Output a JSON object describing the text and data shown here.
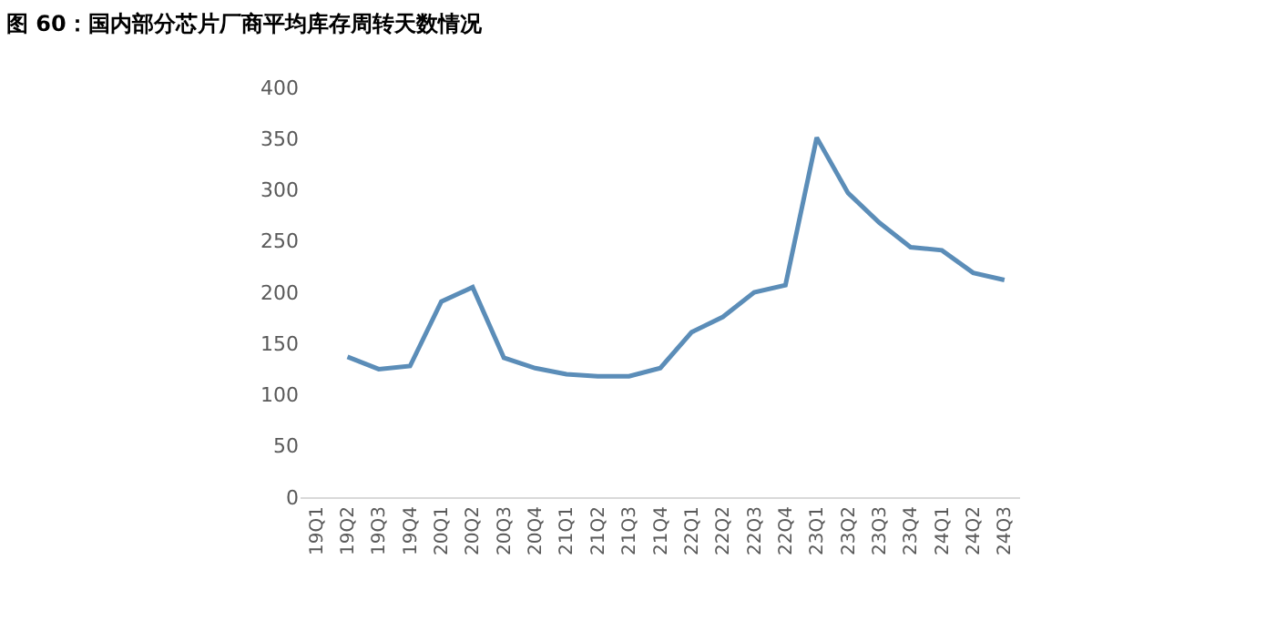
{
  "chart_data": {
    "type": "line",
    "title": "图 60：国内部分芯片厂商平均库存周转天数情况",
    "categories": [
      "19Q1",
      "19Q2",
      "19Q3",
      "19Q4",
      "20Q1",
      "20Q2",
      "20Q3",
      "20Q4",
      "21Q1",
      "21Q2",
      "21Q3",
      "21Q4",
      "22Q1",
      "22Q2",
      "22Q3",
      "22Q4",
      "23Q1",
      "23Q2",
      "23Q3",
      "23Q4",
      "24Q1",
      "24Q2",
      "24Q3"
    ],
    "series": [
      {
        "color": "#5b8db8",
        "values": [
          null,
          137,
          125,
          128,
          191,
          205,
          136,
          126,
          120,
          118,
          118,
          126,
          161,
          176,
          200,
          207,
          351,
          297,
          268,
          244,
          241,
          219,
          212
        ]
      }
    ],
    "ylim": [
      0,
      400
    ],
    "yticks": [
      0,
      50,
      100,
      150,
      200,
      250,
      300,
      350,
      400
    ],
    "grid": false,
    "marker": "none",
    "line_style": "solid"
  }
}
